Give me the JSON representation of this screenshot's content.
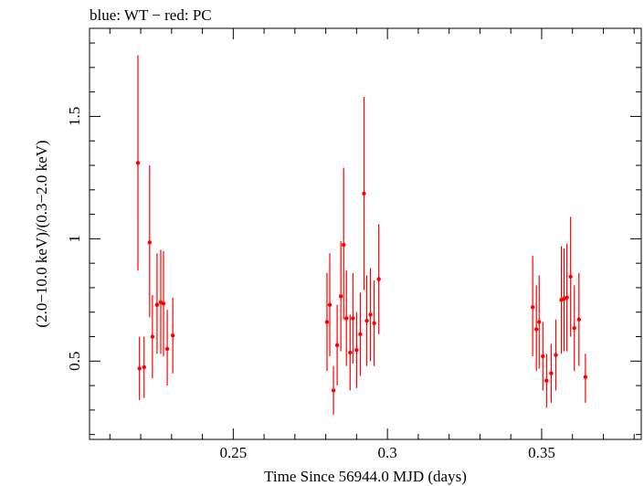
{
  "chart_data": {
    "type": "scatter",
    "title": "blue: WT − red: PC",
    "xlabel": "Time Since 56944.0 MJD (days)",
    "ylabel": "(2.0−10.0 keV)/(0.3−2.0 keV)",
    "xlim": [
      0.2034,
      0.3823
    ],
    "ylim": [
      0.18,
      1.86
    ],
    "xticks": [
      0.25,
      0.3,
      0.35
    ],
    "xtick_labels": [
      "0.25",
      "0.3",
      "0.35"
    ],
    "yticks": [
      0.5,
      1,
      1.5
    ],
    "ytick_labels": [
      "0.5",
      "1",
      "1.5"
    ],
    "grid": false,
    "series": [
      {
        "color": "#ff0000",
        "points": [
          {
            "x": 0.2191,
            "y": 1.31,
            "lo": 0.87,
            "hi": 1.75
          },
          {
            "x": 0.2196,
            "y": 0.47,
            "lo": 0.34,
            "hi": 0.6
          },
          {
            "x": 0.2211,
            "y": 0.475,
            "lo": 0.35,
            "hi": 0.6
          },
          {
            "x": 0.2229,
            "y": 0.985,
            "lo": 0.68,
            "hi": 1.3
          },
          {
            "x": 0.2238,
            "y": 0.6,
            "lo": 0.43,
            "hi": 0.77
          },
          {
            "x": 0.2253,
            "y": 0.73,
            "lo": 0.53,
            "hi": 0.94
          },
          {
            "x": 0.2265,
            "y": 0.74,
            "lo": 0.53,
            "hi": 0.955
          },
          {
            "x": 0.2274,
            "y": 0.735,
            "lo": 0.52,
            "hi": 0.95
          },
          {
            "x": 0.2286,
            "y": 0.55,
            "lo": 0.4,
            "hi": 0.71
          },
          {
            "x": 0.2304,
            "y": 0.605,
            "lo": 0.45,
            "hi": 0.76
          },
          {
            "x": 0.2804,
            "y": 0.66,
            "lo": 0.46,
            "hi": 0.86
          },
          {
            "x": 0.2813,
            "y": 0.73,
            "lo": 0.52,
            "hi": 0.94
          },
          {
            "x": 0.2825,
            "y": 0.38,
            "lo": 0.28,
            "hi": 0.48
          },
          {
            "x": 0.2837,
            "y": 0.565,
            "lo": 0.4,
            "hi": 0.73
          },
          {
            "x": 0.2849,
            "y": 0.765,
            "lo": 0.54,
            "hi": 0.99
          },
          {
            "x": 0.2858,
            "y": 0.975,
            "lo": 0.67,
            "hi": 1.29
          },
          {
            "x": 0.2867,
            "y": 0.675,
            "lo": 0.48,
            "hi": 0.87
          },
          {
            "x": 0.2879,
            "y": 0.535,
            "lo": 0.38,
            "hi": 0.69
          },
          {
            "x": 0.2888,
            "y": 0.675,
            "lo": 0.49,
            "hi": 0.86
          },
          {
            "x": 0.29,
            "y": 0.545,
            "lo": 0.39,
            "hi": 0.7
          },
          {
            "x": 0.2912,
            "y": 0.61,
            "lo": 0.44,
            "hi": 0.78
          },
          {
            "x": 0.2924,
            "y": 1.185,
            "lo": 0.79,
            "hi": 1.58
          },
          {
            "x": 0.2933,
            "y": 0.665,
            "lo": 0.48,
            "hi": 0.85
          },
          {
            "x": 0.2945,
            "y": 0.69,
            "lo": 0.5,
            "hi": 0.88
          },
          {
            "x": 0.2957,
            "y": 0.655,
            "lo": 0.48,
            "hi": 0.83
          },
          {
            "x": 0.2972,
            "y": 0.835,
            "lo": 0.61,
            "hi": 1.06
          },
          {
            "x": 0.3471,
            "y": 0.72,
            "lo": 0.52,
            "hi": 0.93
          },
          {
            "x": 0.3483,
            "y": 0.63,
            "lo": 0.46,
            "hi": 0.81
          },
          {
            "x": 0.3492,
            "y": 0.66,
            "lo": 0.47,
            "hi": 0.85
          },
          {
            "x": 0.3504,
            "y": 0.52,
            "lo": 0.38,
            "hi": 0.66
          },
          {
            "x": 0.3516,
            "y": 0.42,
            "lo": 0.31,
            "hi": 0.53
          },
          {
            "x": 0.3531,
            "y": 0.45,
            "lo": 0.33,
            "hi": 0.57
          },
          {
            "x": 0.3546,
            "y": 0.525,
            "lo": 0.38,
            "hi": 0.67
          },
          {
            "x": 0.3564,
            "y": 0.75,
            "lo": 0.53,
            "hi": 0.97
          },
          {
            "x": 0.3573,
            "y": 0.755,
            "lo": 0.54,
            "hi": 0.96
          },
          {
            "x": 0.3582,
            "y": 0.76,
            "lo": 0.54,
            "hi": 0.98
          },
          {
            "x": 0.3594,
            "y": 0.845,
            "lo": 0.6,
            "hi": 1.09
          },
          {
            "x": 0.3606,
            "y": 0.635,
            "lo": 0.46,
            "hi": 0.81
          },
          {
            "x": 0.3621,
            "y": 0.67,
            "lo": 0.48,
            "hi": 0.86
          },
          {
            "x": 0.3642,
            "y": 0.435,
            "lo": 0.33,
            "hi": 0.53
          }
        ]
      }
    ]
  }
}
